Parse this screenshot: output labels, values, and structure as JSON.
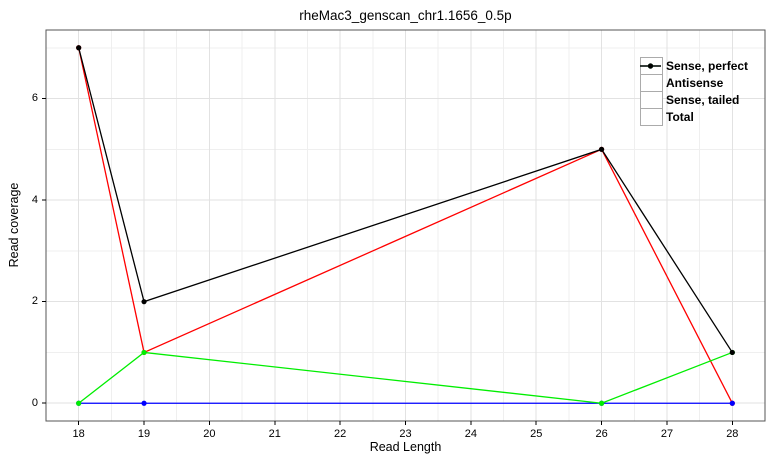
{
  "chart_data": {
    "type": "line",
    "title": "rheMac3_genscan_chr1.1656_0.5p",
    "xlabel": "Read Length",
    "ylabel": "Read coverage",
    "x": [
      18,
      19,
      26,
      28
    ],
    "series": [
      {
        "name": "Sense, perfect",
        "color": "#ff0000",
        "values": [
          7,
          1,
          5,
          0
        ]
      },
      {
        "name": "Antisense",
        "color": "#0000ff",
        "values": [
          0,
          0,
          0,
          0
        ]
      },
      {
        "name": "Sense, tailed",
        "color": "#00ee00",
        "values": [
          0,
          1,
          0,
          1
        ]
      },
      {
        "name": "Total",
        "color": "#000000",
        "values": [
          7,
          2,
          5,
          1
        ]
      }
    ],
    "x_ticks": [
      18,
      19,
      20,
      21,
      22,
      23,
      24,
      25,
      26,
      27,
      28
    ],
    "y_ticks": [
      0,
      2,
      4,
      6
    ],
    "x_minor_grid": [
      18.5,
      19.5,
      20.5,
      21.5,
      22.5,
      23.5,
      24.5,
      25.5,
      26.5,
      27.5
    ],
    "y_minor_grid": [
      1,
      3,
      5,
      7
    ],
    "xlim": [
      17.5,
      28.5
    ],
    "ylim": [
      -0.35,
      7.35
    ],
    "grid": true,
    "marker": "circle",
    "legend_position": "top-right",
    "colors": {
      "background": "#ffffff",
      "panel_background": "#ffffff",
      "panel_border": "#555555",
      "grid_major": "#e2e2e2",
      "grid_minor": "#efefef",
      "tick": "#000000",
      "legend_key_border": "#ababab"
    }
  }
}
